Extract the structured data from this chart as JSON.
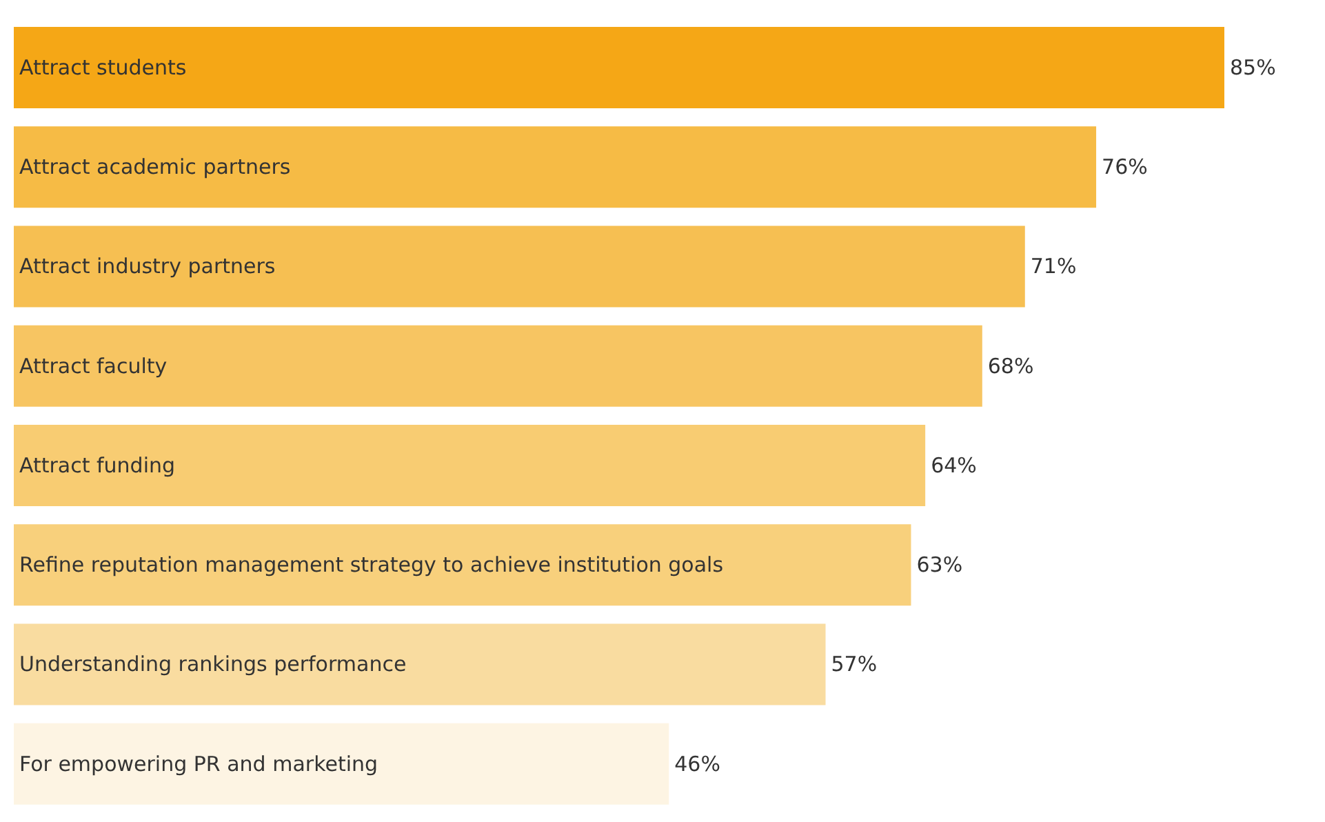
{
  "chart_data": {
    "type": "bar",
    "orientation": "horizontal",
    "categories": [
      "Attract students",
      "Attract academic partners",
      "Attract industry partners",
      "Attract faculty",
      "Attract funding",
      "Refine reputation management strategy to achieve institution goals",
      "Understanding rankings performance",
      "For empowering PR and marketing"
    ],
    "values": [
      85,
      76,
      71,
      68,
      64,
      63,
      57,
      46
    ],
    "value_labels": [
      "85%",
      "76%",
      "71%",
      "68%",
      "64%",
      "63%",
      "57%",
      "46%"
    ],
    "colors": [
      "#f5a716",
      "#f6bb45",
      "#f6bf52",
      "#f7c562",
      "#f8cc72",
      "#f8d07c",
      "#f9dca0",
      "#fdf4e3"
    ]
  }
}
